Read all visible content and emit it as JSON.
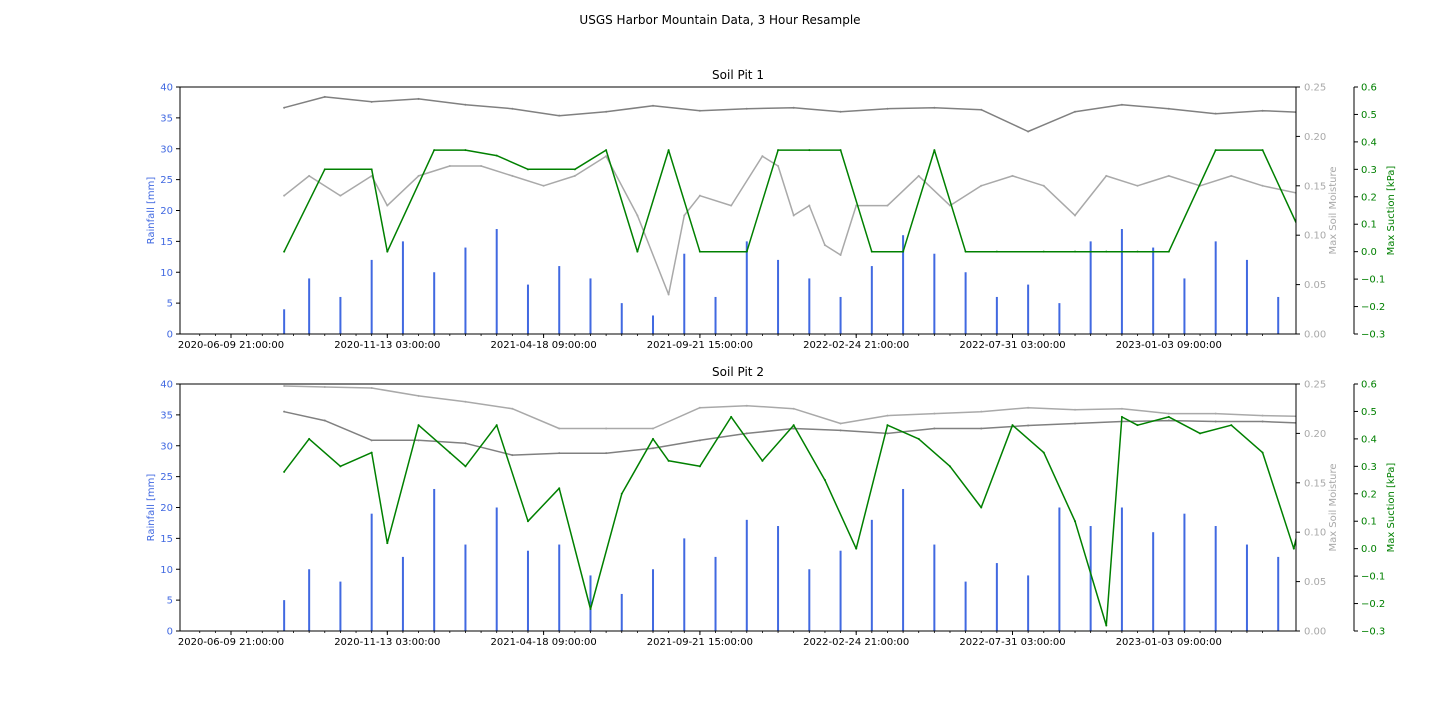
{
  "figure": {
    "suptitle": "USGS Harbor Mountain Data, 3 Hour Resample"
  },
  "colors": {
    "rainfall": "#4169e1",
    "moisture_light": "#a9a9a9",
    "moisture_dark": "#808080",
    "suction": "#008000",
    "axis": "#000000"
  },
  "chart_data": [
    {
      "type": "bar+line",
      "title": "Soil Pit 1",
      "x_tick_labels": [
        "2020-06-09 21:00:00",
        "2020-11-13 03:00:00",
        "2021-04-18 09:00:00",
        "2021-09-21 15:00:00",
        "2022-02-24 21:00:00",
        "2022-07-31 03:00:00",
        "2023-01-03 09:00:00"
      ],
      "axes": {
        "left": {
          "label": "Rainfall [mm]",
          "ylim": [
            0,
            40
          ],
          "ticks": [
            "0",
            "5",
            "10",
            "15",
            "20",
            "25",
            "30",
            "35",
            "40"
          ]
        },
        "right1": {
          "label": "Max Soil Moisture",
          "ylim": [
            0,
            0.25
          ],
          "ticks": [
            "0.00",
            "0.05",
            "0.10",
            "0.15",
            "0.20",
            "0.25"
          ]
        },
        "right2": {
          "label": "Max Suction [kPa]",
          "ylim": [
            -0.3,
            0.6
          ],
          "ticks": [
            "−0.3",
            "−0.2",
            "−0.1",
            "0.0",
            "0.1",
            "0.2",
            "0.3",
            "0.4",
            "0.5",
            "0.6"
          ]
        }
      },
      "series": [
        {
          "axis": "left",
          "kind": "bar",
          "color": "#4169e1",
          "x_tick_index": [
            0.34,
            0.5,
            0.7,
            0.9,
            1.1,
            1.3,
            1.5,
            1.7,
            1.9,
            2.1,
            2.3,
            2.5,
            2.7,
            2.9,
            3.1,
            3.3,
            3.5,
            3.7,
            3.9,
            4.1,
            4.3,
            4.5,
            4.7,
            4.9,
            5.1,
            5.3,
            5.5,
            5.7,
            5.9,
            6.1,
            6.3,
            6.5,
            6.7
          ],
          "values": [
            4,
            9,
            6,
            12,
            15,
            10,
            14,
            17,
            8,
            11,
            9,
            5,
            3,
            13,
            6,
            15,
            12,
            9,
            6,
            11,
            16,
            13,
            10,
            6,
            8,
            5,
            15,
            17,
            14,
            9,
            15,
            12,
            6
          ]
        },
        {
          "axis": "right1",
          "kind": "line",
          "color": "#808080",
          "x_tick_index": [
            0.34,
            0.6,
            0.9,
            1.2,
            1.5,
            1.8,
            2.1,
            2.4,
            2.7,
            3.0,
            3.3,
            3.6,
            3.9,
            4.2,
            4.5,
            4.8,
            5.1,
            5.4,
            5.7,
            6.0,
            6.3,
            6.6,
            6.9
          ],
          "values": [
            0.229,
            0.24,
            0.235,
            0.238,
            0.232,
            0.228,
            0.221,
            0.225,
            0.231,
            0.226,
            0.228,
            0.229,
            0.225,
            0.228,
            0.229,
            0.227,
            0.205,
            0.225,
            0.232,
            0.228,
            0.223,
            0.226,
            0.224
          ]
        },
        {
          "axis": "right1",
          "kind": "line",
          "color": "#a9a9a9",
          "x_tick_index": [
            0.34,
            0.5,
            0.7,
            0.9,
            1.0,
            1.2,
            1.4,
            1.6,
            1.8,
            2.0,
            2.2,
            2.4,
            2.6,
            2.8,
            2.9,
            3.0,
            3.2,
            3.4,
            3.5,
            3.6,
            3.7,
            3.8,
            3.9,
            4.0,
            4.2,
            4.4,
            4.6,
            4.8,
            5.0,
            5.2,
            5.4,
            5.6,
            5.8,
            6.0,
            6.2,
            6.4,
            6.6,
            6.9
          ],
          "values": [
            0.14,
            0.16,
            0.14,
            0.16,
            0.13,
            0.16,
            0.17,
            0.17,
            0.16,
            0.15,
            0.16,
            0.18,
            0.12,
            0.04,
            0.12,
            0.14,
            0.13,
            0.18,
            0.17,
            0.12,
            0.13,
            0.09,
            0.08,
            0.13,
            0.13,
            0.16,
            0.13,
            0.15,
            0.16,
            0.15,
            0.12,
            0.16,
            0.15,
            0.16,
            0.15,
            0.16,
            0.15,
            0.14
          ]
        },
        {
          "axis": "right2",
          "kind": "line",
          "color": "#008000",
          "x_tick_index": [
            0.34,
            0.6,
            0.9,
            1.0,
            1.3,
            1.5,
            1.7,
            1.9,
            2.2,
            2.4,
            2.6,
            2.8,
            3.0,
            3.3,
            3.5,
            3.7,
            3.9,
            4.1,
            4.3,
            4.5,
            4.7,
            4.9,
            5.2,
            5.4,
            5.6,
            5.8,
            6.0,
            6.3,
            6.6,
            6.9
          ],
          "values": [
            0.0,
            0.3,
            0.3,
            0.0,
            0.37,
            0.37,
            0.35,
            0.3,
            0.3,
            0.37,
            0.0,
            0.37,
            0.0,
            0.0,
            0.37,
            0.37,
            0.37,
            0.0,
            0.0,
            0.37,
            0.0,
            0.0,
            0.0,
            0.0,
            0.0,
            0.0,
            0.0,
            0.37,
            0.37,
            0.0
          ]
        }
      ]
    },
    {
      "type": "bar+line",
      "title": "Soil Pit 2",
      "x_tick_labels": [
        "2020-06-09 21:00:00",
        "2020-11-13 03:00:00",
        "2021-04-18 09:00:00",
        "2021-09-21 15:00:00",
        "2022-02-24 21:00:00",
        "2022-07-31 03:00:00",
        "2023-01-03 09:00:00"
      ],
      "axes": {
        "left": {
          "label": "Rainfall [mm]",
          "ylim": [
            0,
            40
          ],
          "ticks": [
            "0",
            "5",
            "10",
            "15",
            "20",
            "25",
            "30",
            "35",
            "40"
          ]
        },
        "right1": {
          "label": "Max Soil Moisture",
          "ylim": [
            0,
            0.25
          ],
          "ticks": [
            "0.00",
            "0.05",
            "0.10",
            "0.15",
            "0.20",
            "0.25"
          ]
        },
        "right2": {
          "label": "Max Suction [kPa]",
          "ylim": [
            -0.3,
            0.6
          ],
          "ticks": [
            "−0.3",
            "−0.2",
            "−0.1",
            "0.0",
            "0.1",
            "0.2",
            "0.3",
            "0.4",
            "0.5",
            "0.6"
          ]
        }
      },
      "series": [
        {
          "axis": "left",
          "kind": "bar",
          "color": "#4169e1",
          "x_tick_index": [
            0.34,
            0.5,
            0.7,
            0.9,
            1.1,
            1.3,
            1.5,
            1.7,
            1.9,
            2.1,
            2.3,
            2.5,
            2.7,
            2.9,
            3.1,
            3.3,
            3.5,
            3.7,
            3.9,
            4.1,
            4.3,
            4.5,
            4.7,
            4.9,
            5.1,
            5.3,
            5.5,
            5.7,
            5.9,
            6.1,
            6.3,
            6.5,
            6.7
          ],
          "values": [
            5,
            10,
            8,
            19,
            12,
            23,
            14,
            20,
            13,
            14,
            9,
            6,
            10,
            15,
            12,
            18,
            17,
            10,
            13,
            18,
            23,
            14,
            8,
            11,
            9,
            20,
            17,
            20,
            16,
            19,
            17,
            14,
            12
          ]
        },
        {
          "axis": "right1",
          "kind": "line",
          "color": "#a9a9a9",
          "x_tick_index": [
            0.34,
            0.6,
            0.9,
            1.2,
            1.5,
            1.8,
            2.1,
            2.4,
            2.7,
            3.0,
            3.3,
            3.6,
            3.9,
            4.2,
            4.5,
            4.8,
            5.1,
            5.4,
            5.7,
            6.0,
            6.3,
            6.6,
            6.9
          ],
          "values": [
            0.248,
            0.247,
            0.246,
            0.238,
            0.232,
            0.225,
            0.205,
            0.205,
            0.205,
            0.226,
            0.228,
            0.225,
            0.21,
            0.218,
            0.22,
            0.222,
            0.226,
            0.224,
            0.225,
            0.22,
            0.22,
            0.218,
            0.217
          ]
        },
        {
          "axis": "right1",
          "kind": "line",
          "color": "#808080",
          "x_tick_index": [
            0.34,
            0.6,
            0.9,
            1.2,
            1.5,
            1.8,
            2.1,
            2.4,
            2.7,
            3.0,
            3.3,
            3.6,
            3.9,
            4.2,
            4.5,
            4.8,
            5.1,
            5.4,
            5.7,
            6.0,
            6.3,
            6.6,
            6.9
          ],
          "values": [
            0.222,
            0.213,
            0.193,
            0.193,
            0.19,
            0.178,
            0.18,
            0.18,
            0.185,
            0.193,
            0.2,
            0.205,
            0.203,
            0.2,
            0.205,
            0.205,
            0.208,
            0.21,
            0.212,
            0.213,
            0.212,
            0.212,
            0.21
          ]
        },
        {
          "axis": "right2",
          "kind": "line",
          "color": "#008000",
          "x_tick_index": [
            0.34,
            0.5,
            0.7,
            0.9,
            1.0,
            1.2,
            1.4,
            1.5,
            1.7,
            1.9,
            2.1,
            2.3,
            2.5,
            2.7,
            2.8,
            3.0,
            3.2,
            3.4,
            3.6,
            3.8,
            4.0,
            4.2,
            4.4,
            4.6,
            4.8,
            5.0,
            5.2,
            5.4,
            5.6,
            5.7,
            5.8,
            6.0,
            6.2,
            6.4,
            6.6,
            6.8,
            6.9
          ],
          "values": [
            0.28,
            0.4,
            0.3,
            0.35,
            0.02,
            0.45,
            0.35,
            0.3,
            0.45,
            0.1,
            0.22,
            -0.22,
            0.2,
            0.4,
            0.32,
            0.3,
            0.48,
            0.32,
            0.45,
            0.25,
            0.0,
            0.45,
            0.4,
            0.3,
            0.15,
            0.45,
            0.35,
            0.1,
            -0.28,
            0.48,
            0.45,
            0.48,
            0.42,
            0.45,
            0.35,
            0.0,
            0.25
          ]
        }
      ]
    }
  ]
}
